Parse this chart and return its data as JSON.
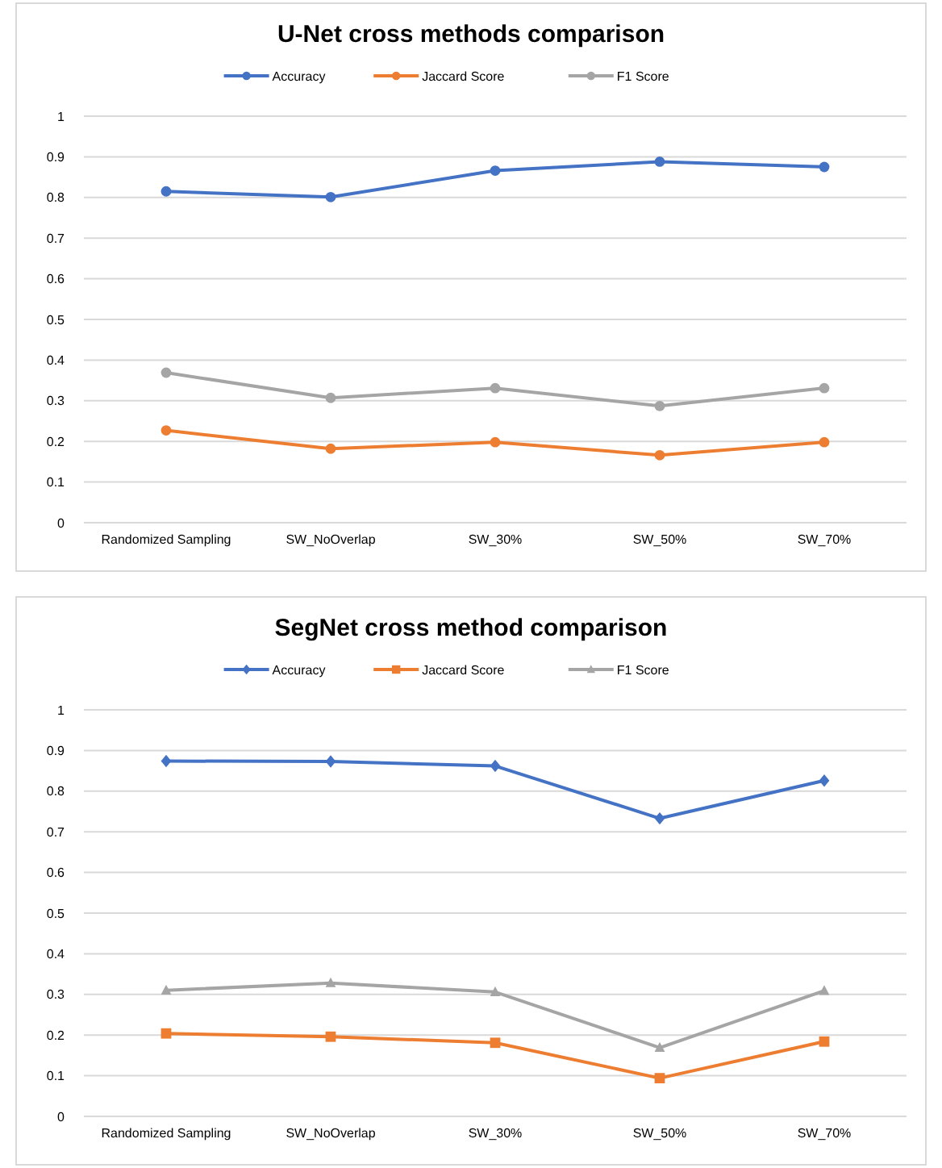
{
  "chart_data": [
    {
      "type": "line",
      "title": "U-Net cross methods comparison",
      "categories": [
        "Randomized Sampling",
        "SW_NoOverlap",
        "SW_30%",
        "SW_50%",
        "SW_70%"
      ],
      "series": [
        {
          "name": "Accuracy",
          "color": "#4472c4",
          "marker": "circle",
          "values": [
            0.815,
            0.801,
            0.866,
            0.888,
            0.875
          ]
        },
        {
          "name": "Jaccard Score",
          "color": "#ed7d31",
          "marker": "circle",
          "values": [
            0.227,
            0.182,
            0.198,
            0.166,
            0.198
          ]
        },
        {
          "name": "F1 Score",
          "color": "#a5a5a5",
          "marker": "circle",
          "values": [
            0.369,
            0.307,
            0.331,
            0.287,
            0.331
          ]
        }
      ],
      "ylim": [
        0,
        1
      ],
      "yticks": [
        0,
        0.1,
        0.2,
        0.3,
        0.4,
        0.5,
        0.6,
        0.7,
        0.8,
        0.9,
        1
      ],
      "grid": "y",
      "legend": "top"
    },
    {
      "type": "line",
      "title": "SegNet cross method comparison",
      "categories": [
        "Randomized Sampling",
        "SW_NoOverlap",
        "SW_30%",
        "SW_50%",
        "SW_70%"
      ],
      "series": [
        {
          "name": "Accuracy",
          "color": "#4472c4",
          "marker": "diamond",
          "values": [
            0.874,
            0.873,
            0.862,
            0.733,
            0.826
          ]
        },
        {
          "name": "Jaccard Score",
          "color": "#ed7d31",
          "marker": "square",
          "values": [
            0.204,
            0.196,
            0.181,
            0.094,
            0.184
          ]
        },
        {
          "name": "F1 Score",
          "color": "#a5a5a5",
          "marker": "triangle",
          "values": [
            0.31,
            0.328,
            0.306,
            0.169,
            0.309
          ]
        }
      ],
      "ylim": [
        0,
        1
      ],
      "yticks": [
        0,
        0.1,
        0.2,
        0.3,
        0.4,
        0.5,
        0.6,
        0.7,
        0.8,
        0.9,
        1
      ],
      "grid": "y",
      "legend": "top"
    }
  ]
}
